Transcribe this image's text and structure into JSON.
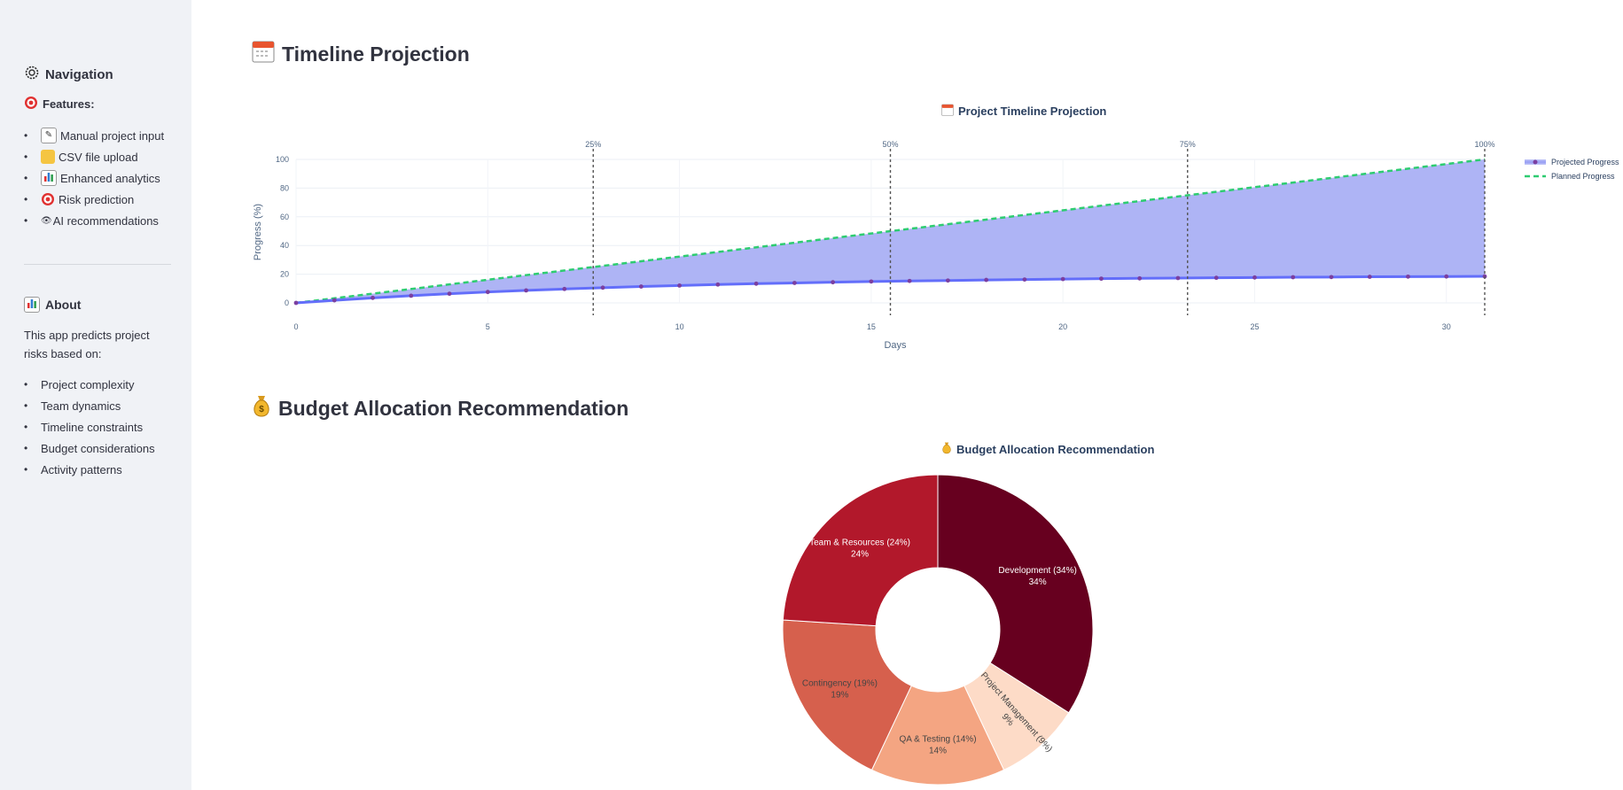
{
  "sidebar": {
    "nav_title": "Navigation",
    "features_label": "Features:",
    "features": [
      {
        "label": "Manual project input",
        "icon": "memo-icon"
      },
      {
        "label": "CSV file upload",
        "icon": "folder-icon"
      },
      {
        "label": "Enhanced analytics",
        "icon": "bar-chart-icon"
      },
      {
        "label": "Risk prediction",
        "icon": "target-icon"
      },
      {
        "label": "AI recommendations",
        "icon": "eye-icon"
      }
    ],
    "about_title": "About",
    "about_text": "This app predicts project risks based on:",
    "about_items": [
      "Project complexity",
      "Team dynamics",
      "Timeline constraints",
      "Budget considerations",
      "Activity patterns"
    ]
  },
  "timeline_section": {
    "title": "Timeline Projection"
  },
  "budget_section": {
    "title": "Budget Allocation Recommendation"
  },
  "chart_data": [
    {
      "type": "line",
      "title": "Project Timeline Projection",
      "xlabel": "Days",
      "ylabel": "Progress (%)",
      "xlim": [
        0,
        31
      ],
      "ylim": [
        0,
        100
      ],
      "x_ticks": [
        0,
        5,
        10,
        15,
        20,
        25,
        30
      ],
      "y_ticks": [
        0,
        20,
        40,
        60,
        80,
        100
      ],
      "grid": true,
      "legend_position": "right",
      "series": [
        {
          "name": "Projected Progress",
          "style": "solid line with markers, filled to next series",
          "color": "#636efa",
          "fill": "#aab0f4",
          "x": [
            0,
            1,
            2,
            3,
            4,
            5,
            6,
            7,
            8,
            9,
            10,
            11,
            12,
            13,
            14,
            15,
            16,
            17,
            18,
            19,
            20,
            21,
            22,
            23,
            24,
            25,
            26,
            27,
            28,
            29,
            30,
            31
          ],
          "y": [
            0,
            1.8,
            3.5,
            5,
            6.4,
            7.6,
            8.7,
            9.7,
            10.6,
            11.4,
            12.1,
            12.8,
            13.4,
            13.9,
            14.4,
            14.9,
            15.3,
            15.6,
            16,
            16.3,
            16.6,
            16.9,
            17.1,
            17.3,
            17.5,
            17.7,
            17.9,
            18,
            18.2,
            18.3,
            18.4,
            18.5
          ]
        },
        {
          "name": "Planned Progress",
          "style": "dashed line",
          "color": "#2ecc71",
          "x": [
            0,
            31
          ],
          "y": [
            0,
            100
          ]
        }
      ],
      "vertical_markers": [
        {
          "x": 7.75,
          "label": "25%"
        },
        {
          "x": 15.5,
          "label": "50%"
        },
        {
          "x": 23.25,
          "label": "75%"
        },
        {
          "x": 31,
          "label": "100%"
        }
      ]
    },
    {
      "type": "pie",
      "style": "donut",
      "title": "Budget Allocation Recommendation",
      "slices": [
        {
          "label": "Development (34%)",
          "percent_label": "34%",
          "value": 34,
          "color": "#67001f",
          "text_color": "#ffffff"
        },
        {
          "label": "Project Management (9%)",
          "percent_label": "9%",
          "value": 9,
          "color": "#fddbc7",
          "text_color": "#444444"
        },
        {
          "label": "QA & Testing (14%)",
          "percent_label": "14%",
          "value": 14,
          "color": "#f4a582",
          "text_color": "#444444"
        },
        {
          "label": "Contingency (19%)",
          "percent_label": "19%",
          "value": 19,
          "color": "#d6604d",
          "text_color": "#444444"
        },
        {
          "label": "Team & Resources (24%)",
          "percent_label": "24%",
          "value": 24,
          "color": "#b2182b",
          "text_color": "#ffffff"
        }
      ]
    }
  ]
}
